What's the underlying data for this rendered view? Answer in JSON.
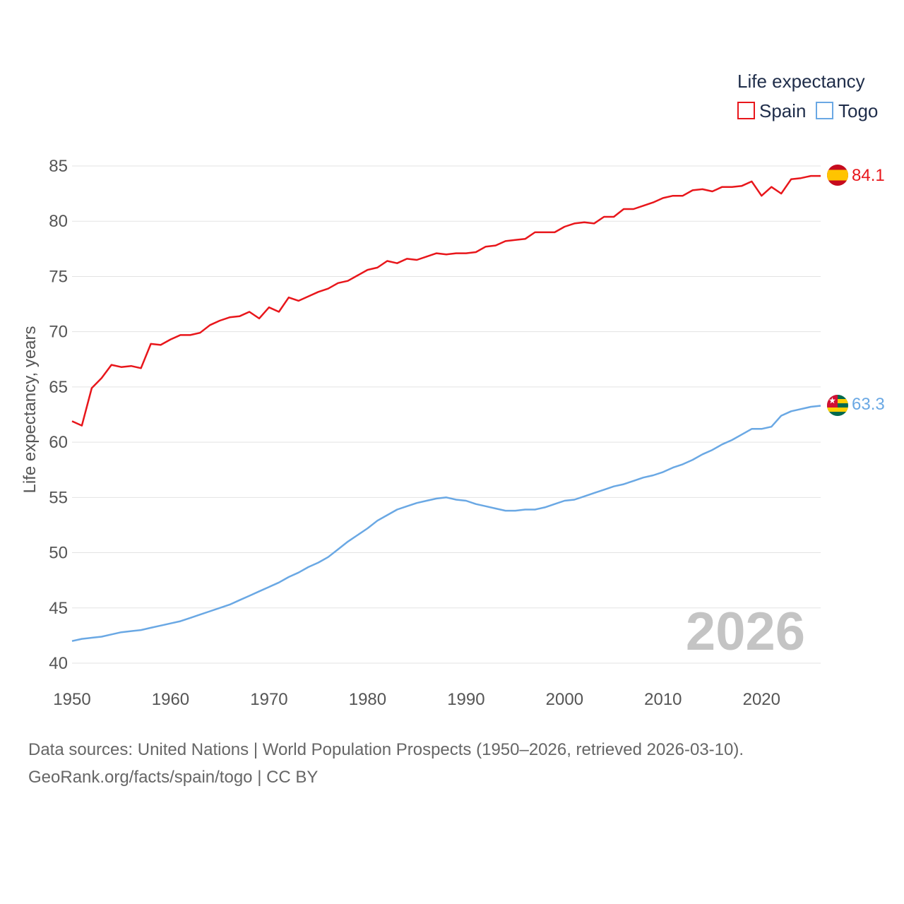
{
  "chart_data": {
    "type": "line",
    "title": "Life expectancy",
    "xlabel": "",
    "ylabel": "Life expectancy, years",
    "xlim": [
      1950,
      2026
    ],
    "ylim": [
      40,
      85
    ],
    "x_ticks": [
      "1950",
      "1960",
      "1970",
      "1980",
      "1990",
      "2000",
      "2010",
      "2020"
    ],
    "y_ticks": [
      "40",
      "45",
      "50",
      "55",
      "60",
      "65",
      "70",
      "75",
      "80",
      "85"
    ],
    "year_watermark": "2026",
    "legend": {
      "placement": "top-right",
      "title": "Life expectancy"
    },
    "series": [
      {
        "name": "Spain",
        "color": "#e8161b",
        "flag": "spain-flag",
        "end_label": "84.1",
        "x": [
          1950,
          1951,
          1952,
          1953,
          1954,
          1955,
          1956,
          1957,
          1958,
          1959,
          1960,
          1961,
          1962,
          1963,
          1964,
          1965,
          1966,
          1967,
          1968,
          1969,
          1970,
          1971,
          1972,
          1973,
          1974,
          1975,
          1976,
          1977,
          1978,
          1979,
          1980,
          1981,
          1982,
          1983,
          1984,
          1985,
          1986,
          1987,
          1988,
          1989,
          1990,
          1991,
          1992,
          1993,
          1994,
          1995,
          1996,
          1997,
          1998,
          1999,
          2000,
          2001,
          2002,
          2003,
          2004,
          2005,
          2006,
          2007,
          2008,
          2009,
          2010,
          2011,
          2012,
          2013,
          2014,
          2015,
          2016,
          2017,
          2018,
          2019,
          2020,
          2021,
          2022,
          2023,
          2024,
          2025,
          2026
        ],
        "values": [
          61.9,
          61.5,
          64.9,
          65.8,
          67.0,
          66.8,
          66.9,
          66.7,
          68.9,
          68.8,
          69.3,
          69.7,
          69.7,
          69.9,
          70.6,
          71.0,
          71.3,
          71.4,
          71.8,
          71.2,
          72.2,
          71.8,
          73.1,
          72.8,
          73.2,
          73.6,
          73.9,
          74.4,
          74.6,
          75.1,
          75.6,
          75.8,
          76.4,
          76.2,
          76.6,
          76.5,
          76.8,
          77.1,
          77.0,
          77.1,
          77.1,
          77.2,
          77.7,
          77.8,
          78.2,
          78.3,
          78.4,
          79.0,
          79.0,
          79.0,
          79.5,
          79.8,
          79.9,
          79.8,
          80.4,
          80.4,
          81.1,
          81.1,
          81.4,
          81.7,
          82.1,
          82.3,
          82.3,
          82.8,
          82.9,
          82.7,
          83.1,
          83.1,
          83.2,
          83.6,
          82.3,
          83.1,
          82.5,
          83.8,
          83.9,
          84.1,
          84.1
        ]
      },
      {
        "name": "Togo",
        "color": "#6aa8e4",
        "flag": "togo-flag",
        "end_label": "63.3",
        "x": [
          1950,
          1951,
          1952,
          1953,
          1954,
          1955,
          1956,
          1957,
          1958,
          1959,
          1960,
          1961,
          1962,
          1963,
          1964,
          1965,
          1966,
          1967,
          1968,
          1969,
          1970,
          1971,
          1972,
          1973,
          1974,
          1975,
          1976,
          1977,
          1978,
          1979,
          1980,
          1981,
          1982,
          1983,
          1984,
          1985,
          1986,
          1987,
          1988,
          1989,
          1990,
          1991,
          1992,
          1993,
          1994,
          1995,
          1996,
          1997,
          1998,
          1999,
          2000,
          2001,
          2002,
          2003,
          2004,
          2005,
          2006,
          2007,
          2008,
          2009,
          2010,
          2011,
          2012,
          2013,
          2014,
          2015,
          2016,
          2017,
          2018,
          2019,
          2020,
          2021,
          2022,
          2023,
          2024,
          2025,
          2026
        ],
        "values": [
          42.0,
          42.2,
          42.3,
          42.4,
          42.6,
          42.8,
          42.9,
          43.0,
          43.2,
          43.4,
          43.6,
          43.8,
          44.1,
          44.4,
          44.7,
          45.0,
          45.3,
          45.7,
          46.1,
          46.5,
          46.9,
          47.3,
          47.8,
          48.2,
          48.7,
          49.1,
          49.6,
          50.3,
          51.0,
          51.6,
          52.2,
          52.9,
          53.4,
          53.9,
          54.2,
          54.5,
          54.7,
          54.9,
          55.0,
          54.8,
          54.7,
          54.4,
          54.2,
          54.0,
          53.8,
          53.8,
          53.9,
          53.9,
          54.1,
          54.4,
          54.7,
          54.8,
          55.1,
          55.4,
          55.7,
          56.0,
          56.2,
          56.5,
          56.8,
          57.0,
          57.3,
          57.7,
          58.0,
          58.4,
          58.9,
          59.3,
          59.8,
          60.2,
          60.7,
          61.2,
          61.2,
          61.4,
          62.4,
          62.8,
          63.0,
          63.2,
          63.3
        ]
      }
    ]
  },
  "footer": {
    "line1": "Data sources: United Nations | World Population Prospects (1950–2026, retrieved 2026-03-10).",
    "line2": "GeoRank.org/facts/spain/togo | CC BY"
  }
}
